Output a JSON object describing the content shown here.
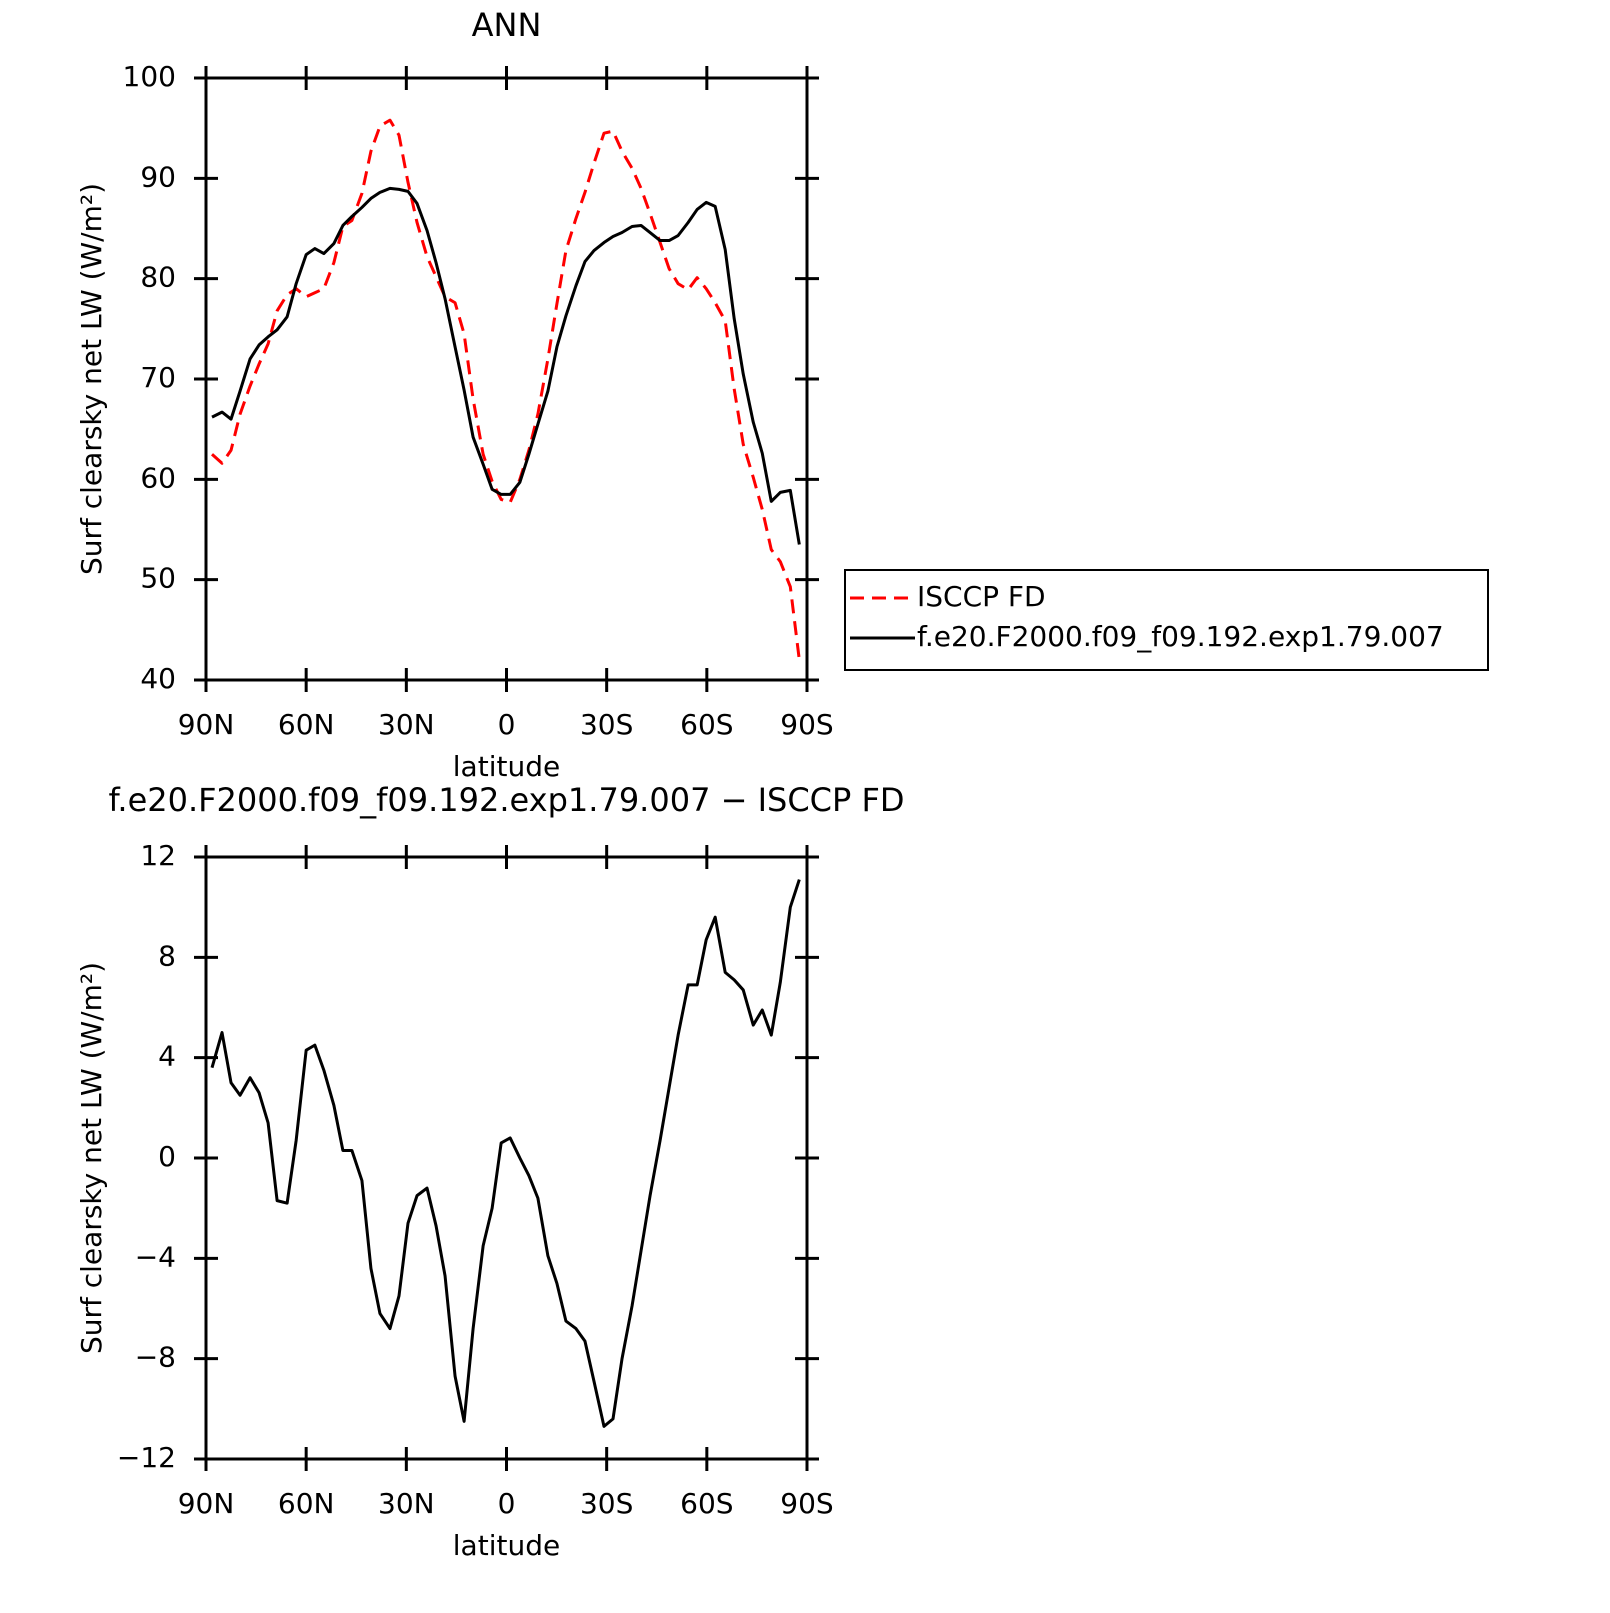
{
  "chart_data": [
    {
      "type": "line",
      "title": "ANN",
      "xlabel": "latitude",
      "ylabel": "Surf clearsky net LW (W/m²)",
      "x": [
        88.2,
        85.2,
        82.5,
        79.8,
        76.8,
        74.1,
        71.4,
        68.7,
        65.7,
        63.0,
        60.0,
        57.4,
        54.7,
        51.7,
        49.0,
        46.3,
        43.3,
        40.6,
        37.9,
        34.9,
        32.2,
        29.5,
        26.8,
        23.8,
        21.1,
        18.4,
        15.4,
        12.7,
        10.0,
        7.0,
        4.3,
        1.6,
        -1.1,
        -4.0,
        -6.7,
        -9.4,
        -12.4,
        -15.1,
        -17.8,
        -20.8,
        -23.5,
        -26.2,
        -29.2,
        -31.9,
        -34.6,
        -37.6,
        -40.3,
        -43.0,
        -46.0,
        -48.7,
        -51.4,
        -54.4,
        -57.1,
        -59.8,
        -62.5,
        -65.5,
        -68.2,
        -70.9,
        -73.9,
        -76.6,
        -79.3,
        -82.0,
        -85.0,
        -87.7
      ],
      "series": [
        {
          "name": "ISCCP FD",
          "color": "#ff0000",
          "linestyle": "dashed",
          "values": [
            62.5,
            61.6,
            62.9,
            66.5,
            69.3,
            71.5,
            73.5,
            76.8,
            78.4,
            79.0,
            78.2,
            78.6,
            79.0,
            81.6,
            85.2,
            85.8,
            88.5,
            92.7,
            95.2,
            95.8,
            94.3,
            89.6,
            85.6,
            82.2,
            80.2,
            78.2,
            77.6,
            74.5,
            68.0,
            62.5,
            59.8,
            58.0,
            57.7,
            60.0,
            62.9,
            66.5,
            72.0,
            77.5,
            82.8,
            86.0,
            88.6,
            91.5,
            94.5,
            94.7,
            92.7,
            91.0,
            89.0,
            86.5,
            83.6,
            81.0,
            79.5,
            78.9,
            80.1,
            79.0,
            77.6,
            75.8,
            69.0,
            63.5,
            60.2,
            57.0,
            53.0,
            51.8,
            49.3,
            42.0
          ]
        },
        {
          "name": "f.e20.F2000.f09_f09.192.exp1.79.007",
          "color": "#000000",
          "linestyle": "solid",
          "values": [
            66.2,
            66.7,
            66.0,
            68.8,
            72.0,
            73.4,
            74.2,
            74.9,
            76.2,
            79.5,
            82.4,
            83.0,
            82.5,
            83.5,
            85.3,
            86.2,
            87.1,
            88.0,
            88.6,
            89.0,
            88.9,
            88.7,
            87.5,
            84.8,
            81.6,
            78.0,
            73.2,
            68.9,
            64.2,
            61.5,
            59.0,
            58.5,
            58.5,
            59.7,
            62.5,
            65.5,
            68.8,
            73.2,
            76.3,
            79.3,
            81.7,
            82.8,
            83.6,
            84.2,
            84.6,
            85.2,
            85.3,
            84.6,
            83.8,
            83.8,
            84.3,
            85.6,
            86.9,
            87.6,
            87.2,
            82.9,
            76.0,
            70.5,
            65.7,
            62.6,
            57.8,
            58.7,
            58.9,
            53.5
          ]
        }
      ],
      "xlim": [
        90,
        -90
      ],
      "xticks": [
        {
          "value": 90,
          "label": "90N"
        },
        {
          "value": 60,
          "label": "60N"
        },
        {
          "value": 30,
          "label": "30N"
        },
        0,
        {
          "value": -30,
          "label": "30S"
        },
        {
          "value": -60,
          "label": "60S"
        },
        {
          "value": -90,
          "label": "90S"
        }
      ],
      "ylim": [
        40,
        100
      ],
      "yticks": [
        40,
        50,
        60,
        70,
        80,
        90,
        100
      ],
      "legend": "right"
    },
    {
      "type": "line",
      "title": "f.e20.F2000.f09_f09.192.exp1.79.007 − ISCCP FD",
      "xlabel": "latitude",
      "ylabel": "Surf clearsky net LW (W/m²)",
      "x": [
        88.2,
        85.2,
        82.5,
        79.8,
        76.8,
        74.1,
        71.4,
        68.7,
        65.7,
        63.0,
        60.0,
        57.4,
        54.7,
        51.7,
        49.0,
        46.3,
        43.3,
        40.6,
        37.9,
        34.9,
        32.2,
        29.5,
        26.8,
        23.8,
        21.1,
        18.4,
        15.4,
        12.7,
        10.0,
        7.0,
        4.3,
        1.6,
        -1.1,
        -4.0,
        -6.7,
        -9.4,
        -12.4,
        -15.1,
        -17.8,
        -20.8,
        -23.5,
        -26.2,
        -29.2,
        -31.9,
        -34.6,
        -37.6,
        -40.3,
        -43.0,
        -46.0,
        -48.7,
        -51.4,
        -54.4,
        -57.1,
        -59.8,
        -62.5,
        -65.5,
        -68.2,
        -70.9,
        -73.9,
        -76.6,
        -79.3,
        -82.0,
        -85.0,
        -87.7
      ],
      "series": [
        {
          "color": "#000000",
          "linestyle": "solid",
          "values": [
            3.6,
            5.0,
            3.0,
            2.5,
            3.2,
            2.6,
            1.4,
            -1.7,
            -1.8,
            0.7,
            4.3,
            4.5,
            3.5,
            2.1,
            0.3,
            0.3,
            -0.9,
            -4.4,
            -6.2,
            -6.8,
            -5.5,
            -2.6,
            -1.5,
            -1.2,
            -2.7,
            -4.7,
            -8.7,
            -10.5,
            -6.8,
            -3.5,
            -2.0,
            0.6,
            0.8,
            0.0,
            -0.7,
            -1.6,
            -3.9,
            -5.0,
            -6.5,
            -6.8,
            -7.3,
            -8.9,
            -10.7,
            -10.4,
            -8.0,
            -5.9,
            -3.7,
            -1.5,
            0.7,
            2.8,
            4.9,
            6.9,
            6.9,
            8.7,
            9.6,
            7.4,
            7.1,
            6.7,
            5.3,
            5.9,
            4.9,
            7.0,
            10.0,
            11.1
          ]
        }
      ],
      "xlim": [
        90,
        -90
      ],
      "xticks": [
        {
          "value": 90,
          "label": "90N"
        },
        {
          "value": 60,
          "label": "60N"
        },
        {
          "value": 30,
          "label": "30N"
        },
        0,
        {
          "value": -30,
          "label": "30S"
        },
        {
          "value": -60,
          "label": "60S"
        },
        {
          "value": -90,
          "label": "90S"
        }
      ],
      "ylim": [
        -12,
        12
      ],
      "yticks": [
        {
          "value": -12,
          "label": "−12"
        },
        {
          "value": -8,
          "label": "−8"
        },
        {
          "value": -4,
          "label": "−4"
        },
        0,
        4,
        8,
        12
      ]
    }
  ]
}
